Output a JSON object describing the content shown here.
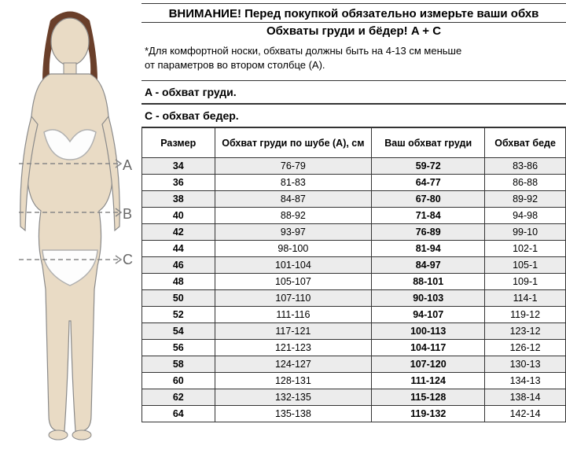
{
  "heading_main": "ВНИМАНИЕ! Перед покупкой обязательно измерьте ваши обхв",
  "heading_sub": "Обхваты груди и бёдер! A + C",
  "note_line1": "*Для комфортной носки, обхваты должны быть на 4-13 см меньше",
  "note_line2": "от параметров во втором столбце (А).",
  "label_a": "A - обхват груди.",
  "label_c": "C - обхват бедер.",
  "figure": {
    "skin_color": "#e9dbc5",
    "hair_color": "#6a3f2a",
    "underwear_color": "#fdfdfd",
    "outline_color": "#8a8a8a",
    "line_color": "#888888",
    "dash_pattern": "6,4",
    "letters": {
      "a": "A",
      "b": "B",
      "c": "C"
    }
  },
  "table": {
    "columns": [
      "Размер",
      "Обхват груди по шубе (A), см",
      "Ваш обхват груди",
      "Обхват беде"
    ],
    "col_bold": [
      true,
      false,
      true,
      false
    ],
    "rows": [
      [
        "34",
        "76-79",
        "59-72",
        "83-86"
      ],
      [
        "36",
        "81-83",
        "64-77",
        "86-88"
      ],
      [
        "38",
        "84-87",
        "67-80",
        "89-92"
      ],
      [
        "40",
        "88-92",
        "71-84",
        "94-98"
      ],
      [
        "42",
        "93-97",
        "76-89",
        "99-10"
      ],
      [
        "44",
        "98-100",
        "81-94",
        "102-1"
      ],
      [
        "46",
        "101-104",
        "84-97",
        "105-1"
      ],
      [
        "48",
        "105-107",
        "88-101",
        "109-1"
      ],
      [
        "50",
        "107-110",
        "90-103",
        "114-1"
      ],
      [
        "52",
        "111-116",
        "94-107",
        "119-12"
      ],
      [
        "54",
        "117-121",
        "100-113",
        "123-12"
      ],
      [
        "56",
        "121-123",
        "104-117",
        "126-12"
      ],
      [
        "58",
        "124-127",
        "107-120",
        "130-13"
      ],
      [
        "60",
        "128-131",
        "111-124",
        "134-13"
      ],
      [
        "62",
        "132-135",
        "115-128",
        "138-14"
      ],
      [
        "64",
        "135-138",
        "119-132",
        "142-14"
      ]
    ],
    "header_bg": "#ffffff",
    "row_alt_bg": "#ececec",
    "border_color": "#333333",
    "font_size": 12.5
  }
}
